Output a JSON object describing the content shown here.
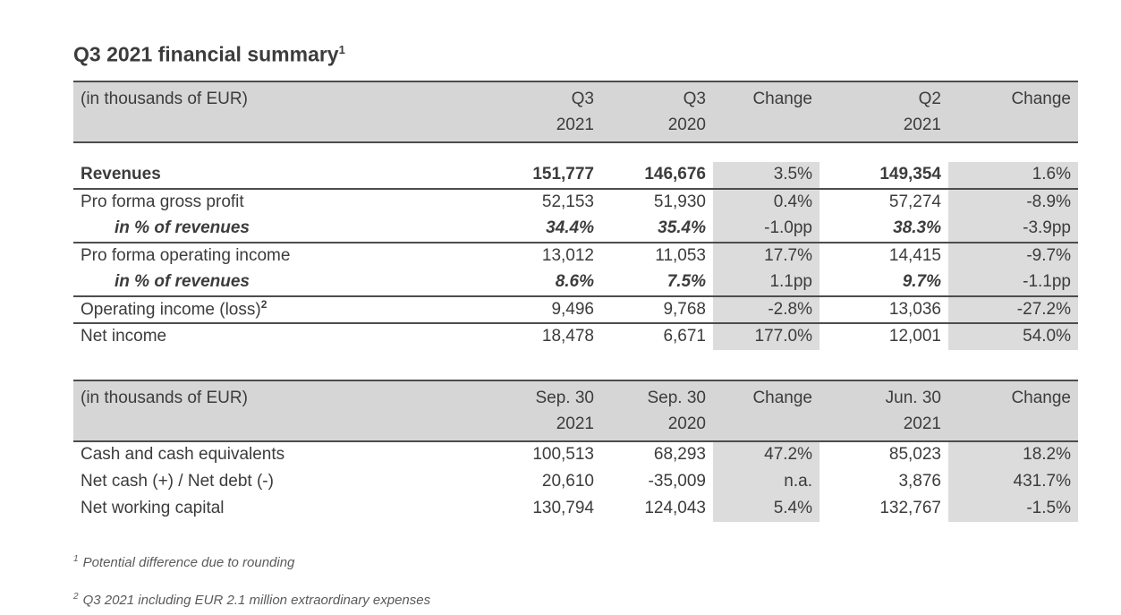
{
  "colors": {
    "text": "#3c3c3c",
    "header_bg": "#d6d6d6",
    "shade_bg": "#dcdcdc",
    "border": "#4d4d4d",
    "footnote": "#5a5a5a",
    "page_bg": "#ffffff"
  },
  "title": {
    "text": "Q3 2021 financial summary",
    "superscript": "1"
  },
  "table1": {
    "unit_label": "(in thousands of EUR)",
    "spacer_after_header": true,
    "columns": [
      {
        "line1": "Q3",
        "line2": "2021"
      },
      {
        "line1": "Q3",
        "line2": "2020"
      },
      {
        "line1": "Change",
        "line2": ""
      },
      {
        "line1": "Q2",
        "line2": "2021"
      },
      {
        "line1": "Change",
        "line2": ""
      }
    ],
    "rows": [
      {
        "label": "Revenues",
        "emphasis": "bold",
        "border_bottom": true,
        "values": [
          "151,777",
          "146,676",
          "3.5%",
          "149,354",
          "1.6%"
        ]
      },
      {
        "label": "Pro forma gross profit",
        "emphasis": "normal",
        "border_bottom": false,
        "values": [
          "52,153",
          "51,930",
          "0.4%",
          "57,274",
          "-8.9%"
        ]
      },
      {
        "label": "in % of revenues",
        "emphasis": "pct",
        "border_bottom": true,
        "values": [
          "34.4%",
          "35.4%",
          "-1.0pp",
          "38.3%",
          "-3.9pp"
        ]
      },
      {
        "label": "Pro forma operating income",
        "emphasis": "normal",
        "border_bottom": false,
        "values": [
          "13,012",
          "11,053",
          "17.7%",
          "14,415",
          "-9.7%"
        ]
      },
      {
        "label": "in % of revenues",
        "emphasis": "pct",
        "border_bottom": true,
        "values": [
          "8.6%",
          "7.5%",
          "1.1pp",
          "9.7%",
          "-1.1pp"
        ]
      },
      {
        "label": "Operating income (loss)",
        "label_sup": "2",
        "emphasis": "normal",
        "border_bottom": true,
        "values": [
          "9,496",
          "9,768",
          "-2.8%",
          "13,036",
          "-27.2%"
        ]
      },
      {
        "label": "Net income",
        "emphasis": "normal",
        "border_bottom": false,
        "values": [
          "18,478",
          "6,671",
          "177.0%",
          "12,001",
          "54.0%"
        ]
      }
    ]
  },
  "table2": {
    "unit_label": "(in thousands of EUR)",
    "spacer_after_header": false,
    "columns": [
      {
        "line1": "Sep. 30",
        "line2": "2021"
      },
      {
        "line1": "Sep. 30",
        "line2": "2020"
      },
      {
        "line1": "Change",
        "line2": ""
      },
      {
        "line1": "Jun. 30",
        "line2": "2021"
      },
      {
        "line1": "Change",
        "line2": ""
      }
    ],
    "rows": [
      {
        "label": "Cash and cash equivalents",
        "emphasis": "normal",
        "border_bottom": false,
        "values": [
          "100,513",
          "68,293",
          "47.2%",
          "85,023",
          "18.2%"
        ]
      },
      {
        "label": "Net cash (+) / Net debt (-)",
        "emphasis": "normal",
        "border_bottom": false,
        "values": [
          "20,610",
          "-35,009",
          "n.a.",
          "3,876",
          "431.7%"
        ]
      },
      {
        "label": "Net working capital",
        "emphasis": "normal",
        "border_bottom": false,
        "values": [
          "130,794",
          "124,043",
          "5.4%",
          "132,767",
          "-1.5%"
        ]
      }
    ]
  },
  "footnotes": [
    {
      "sup": "1",
      "text": "Potential difference due to rounding"
    },
    {
      "sup": "2",
      "text": "Q3 2021 including EUR 2.1 million extraordinary expenses"
    }
  ]
}
